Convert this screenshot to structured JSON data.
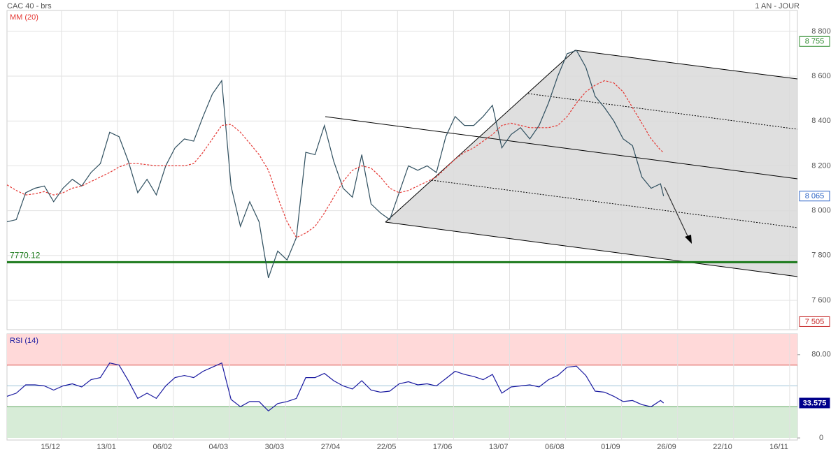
{
  "chart_data": [
    {
      "type": "line",
      "title": "CAC 40 - brs",
      "subtitle": "1 AN - JOUR",
      "x": [
        0,
        3,
        6,
        9,
        12,
        15,
        18,
        21,
        24,
        27,
        30,
        33,
        36,
        39,
        42,
        45,
        48,
        51,
        54,
        57,
        60,
        63,
        66,
        69,
        72,
        75,
        78,
        81,
        84,
        87,
        90,
        93,
        96,
        99,
        102,
        105,
        108,
        111,
        114,
        117,
        120,
        123,
        126,
        129,
        132,
        135,
        138,
        141,
        144,
        147,
        150,
        153,
        156,
        159,
        162,
        165,
        168,
        171,
        174,
        177,
        180,
        183,
        186,
        189,
        192,
        195,
        198,
        201,
        204,
        207,
        210,
        211
      ],
      "series": [
        {
          "color": "#2f4f5f",
          "values": [
            7950,
            7960,
            8080,
            8100,
            8110,
            8040,
            8100,
            8140,
            8110,
            8170,
            8210,
            8350,
            8330,
            8220,
            8080,
            8140,
            8070,
            8200,
            8280,
            8320,
            8310,
            8420,
            8520,
            8580,
            8110,
            7930,
            8040,
            7950,
            7700,
            7820,
            7780,
            7880,
            8260,
            8250,
            8380,
            8220,
            8100,
            8060,
            8250,
            8030,
            7990,
            7960,
            8080,
            8200,
            8180,
            8200,
            8170,
            8330,
            8420,
            8380,
            8380,
            8420,
            8470,
            8280,
            8340,
            8370,
            8320,
            8380,
            8480,
            8600,
            8700,
            8715,
            8640,
            8510,
            8460,
            8400,
            8320,
            8290,
            8150,
            8100,
            8120,
            8065
          ]
        },
        {
          "name": "MM (20)",
          "color": "#e53935",
          "dashed": true,
          "values": [
            8115,
            8090,
            8070,
            8075,
            8085,
            8070,
            8080,
            8100,
            8110,
            8130,
            8150,
            8170,
            8195,
            8210,
            8210,
            8205,
            8200,
            8200,
            8200,
            8200,
            8210,
            8260,
            8320,
            8380,
            8385,
            8350,
            8300,
            8250,
            8180,
            8060,
            7950,
            7880,
            7900,
            7930,
            7990,
            8060,
            8130,
            8180,
            8200,
            8190,
            8150,
            8100,
            8080,
            8090,
            8110,
            8130,
            8150,
            8190,
            8230,
            8260,
            8280,
            8310,
            8340,
            8380,
            8390,
            8380,
            8370,
            8370,
            8370,
            8380,
            8420,
            8480,
            8530,
            8560,
            8580,
            8570,
            8530,
            8460,
            8390,
            8320,
            8270,
            8260
          ]
        }
      ],
      "xlim": [
        0,
        254
      ],
      "ylim": [
        7469,
        8893
      ],
      "yticks": [
        {
          "value": 7600,
          "label": "7 600"
        },
        {
          "value": 7800,
          "label": "7 800"
        },
        {
          "value": 8000,
          "label": "8 000"
        },
        {
          "value": 8200,
          "label": "8 200"
        },
        {
          "value": 8400,
          "label": "8 400"
        },
        {
          "value": 8600,
          "label": "8 600"
        },
        {
          "value": 8800,
          "label": "8 800"
        }
      ],
      "support": 7770.12,
      "support_color": "#1b7a1b",
      "markers": [
        {
          "value": 8755,
          "label": "8 755",
          "color": "#2e8b2e"
        },
        {
          "value": 8065,
          "label": "8 065",
          "color": "#2962c4"
        },
        {
          "value": 7505,
          "label": "7 505",
          "color": "#c62828"
        }
      ],
      "grid": true
    },
    {
      "type": "line",
      "x": [
        0,
        3,
        6,
        9,
        12,
        15,
        18,
        21,
        24,
        27,
        30,
        33,
        36,
        39,
        42,
        45,
        48,
        51,
        54,
        57,
        60,
        63,
        66,
        69,
        72,
        75,
        78,
        81,
        84,
        87,
        90,
        93,
        96,
        99,
        102,
        105,
        108,
        111,
        114,
        117,
        120,
        123,
        126,
        129,
        132,
        135,
        138,
        141,
        144,
        147,
        150,
        153,
        156,
        159,
        162,
        165,
        168,
        171,
        174,
        177,
        180,
        183,
        186,
        189,
        192,
        195,
        198,
        201,
        204,
        207,
        210,
        211
      ],
      "series": [
        {
          "name": "RSI (14)",
          "color": "#1a1aa0",
          "values": [
            40,
            43,
            51,
            51,
            50,
            46,
            50,
            52,
            49,
            56,
            58,
            72,
            70,
            55,
            38,
            43,
            38,
            50,
            58,
            60,
            58,
            64,
            68,
            72,
            37,
            30,
            35,
            35,
            26,
            33,
            35,
            38,
            58,
            58,
            62,
            55,
            50,
            47,
            55,
            46,
            44,
            45,
            52,
            54,
            51,
            52,
            50,
            57,
            64,
            61,
            59,
            56,
            61,
            43,
            49,
            50,
            51,
            49,
            56,
            60,
            68,
            69,
            60,
            45,
            44,
            40,
            35,
            36,
            32,
            30,
            36,
            33.575
          ]
        }
      ],
      "xlim": [
        0,
        254
      ],
      "xticks": [
        {
          "value": 17.5,
          "label": "15/12"
        },
        {
          "value": 35.5,
          "label": "13/01"
        },
        {
          "value": 53.5,
          "label": "06/02"
        },
        {
          "value": 71.5,
          "label": "04/03"
        },
        {
          "value": 89.5,
          "label": "30/03"
        },
        {
          "value": 107.5,
          "label": "27/04"
        },
        {
          "value": 125.5,
          "label": "22/05"
        },
        {
          "value": 143.5,
          "label": "17/06"
        },
        {
          "value": 161.5,
          "label": "13/07"
        },
        {
          "value": 179.5,
          "label": "06/08"
        },
        {
          "value": 197.5,
          "label": "01/09"
        },
        {
          "value": 215.5,
          "label": "26/09"
        },
        {
          "value": 233.5,
          "label": "22/10"
        },
        {
          "value": 251.5,
          "label": "16/11"
        }
      ],
      "ylim": [
        -2,
        100
      ],
      "yticks": [
        0,
        {
          "value": 80,
          "label": "80.00"
        }
      ],
      "bands": [
        {
          "from": 70,
          "to": 100,
          "color": "#ffd9d9"
        },
        {
          "from": 0,
          "to": 30,
          "color": "#d7ecd7"
        }
      ],
      "levels": [
        {
          "value": 70,
          "color": "#d9534f"
        },
        {
          "value": 50,
          "color": "#9cc3d8"
        },
        {
          "value": 30,
          "color": "#5aa55a"
        }
      ],
      "markers": [
        {
          "value": 33.575,
          "color": "#00008b"
        }
      ],
      "grid": true
    }
  ]
}
